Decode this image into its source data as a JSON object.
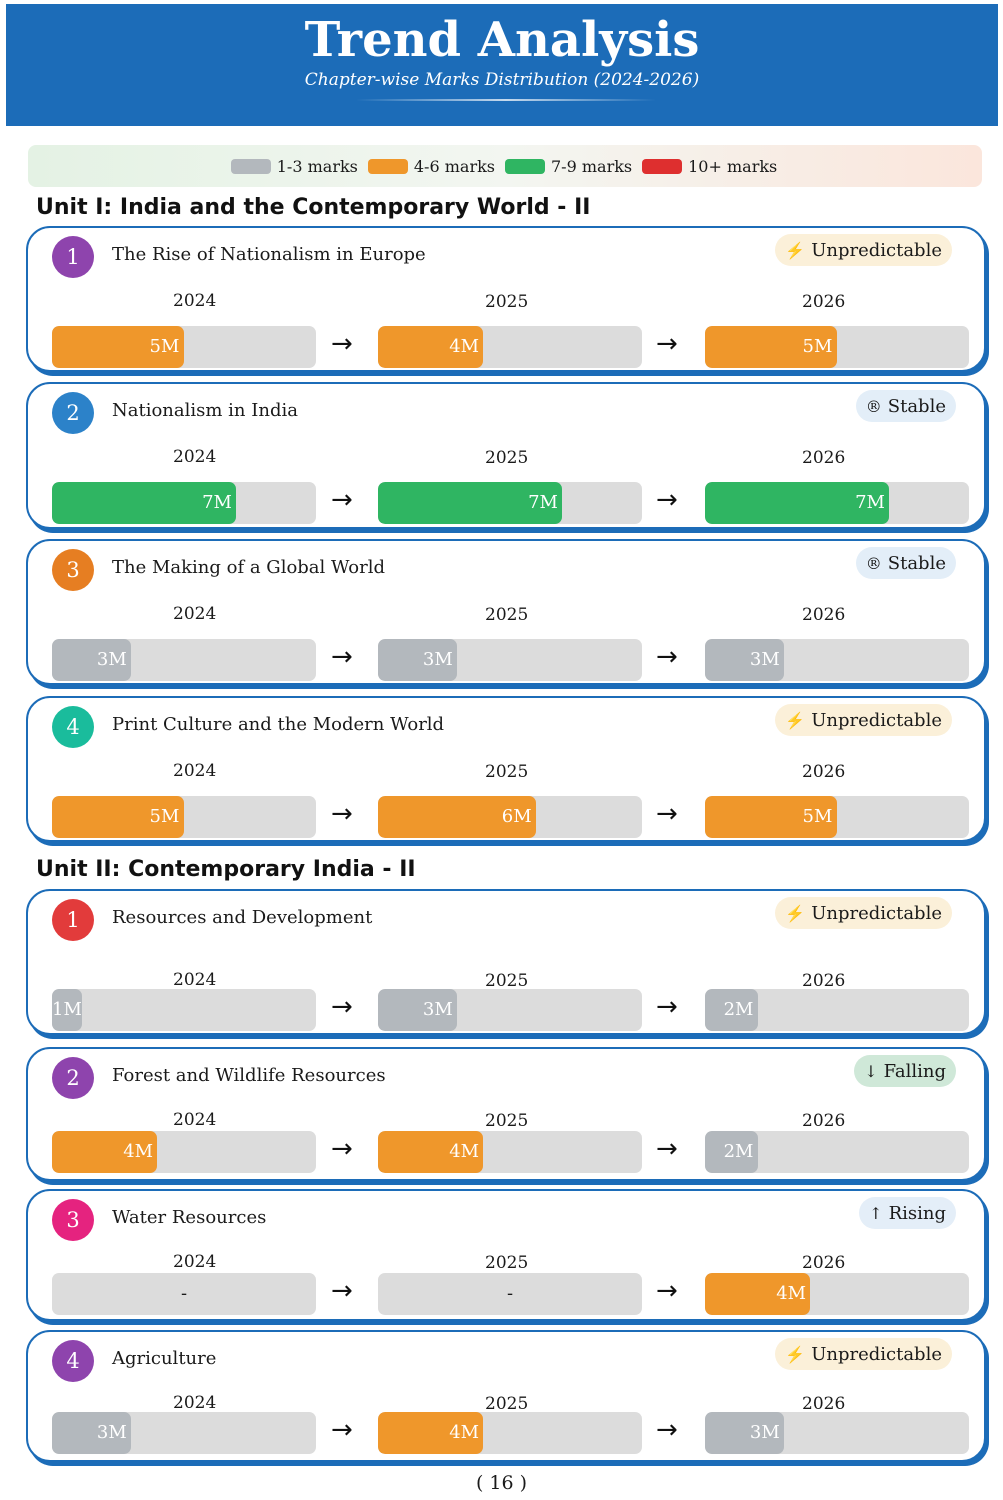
{
  "header": {
    "title": "Trend Analysis",
    "subtitle": "Chapter-wise Marks Distribution (2024-2026)"
  },
  "legend": [
    {
      "label": "1-3 marks",
      "color": "#b3b8bd"
    },
    {
      "label": "4-6 marks",
      "color": "#ef972b"
    },
    {
      "label": "7-9 marks",
      "color": "#2fb562"
    },
    {
      "label": "10+ marks",
      "color": "#de2f2f"
    }
  ],
  "units": [
    {
      "title": "Unit I: India and the Contemporary World - II",
      "chapters": [
        {
          "num": "1",
          "num_color": "#8e44ad",
          "name": "The Rise of Nationalism in Europe",
          "trend": {
            "icon": "lightning-bolt-icon",
            "symbol": "⚡",
            "label": "Unpredictable",
            "style": "unpred"
          },
          "years": [
            {
              "year": "2024",
              "value": 5,
              "text": "5M",
              "color": "#ef972b"
            },
            {
              "year": "2025",
              "value": 4,
              "text": "4M",
              "color": "#ef972b"
            },
            {
              "year": "2026",
              "value": 5,
              "text": "5M",
              "color": "#ef972b"
            }
          ]
        },
        {
          "num": "2",
          "num_color": "#2c82c9",
          "name": "Nationalism in India",
          "trend": {
            "icon": "registered-circle-icon",
            "symbol": "®",
            "label": "Stable",
            "style": "stable"
          },
          "years": [
            {
              "year": "2024",
              "value": 7,
              "text": "7M",
              "color": "#2fb562"
            },
            {
              "year": "2025",
              "value": 7,
              "text": "7M",
              "color": "#2fb562"
            },
            {
              "year": "2026",
              "value": 7,
              "text": "7M",
              "color": "#2fb562"
            }
          ]
        },
        {
          "num": "3",
          "num_color": "#e67e22",
          "name": "The Making of a Global World",
          "trend": {
            "icon": "registered-circle-icon",
            "symbol": "®",
            "label": "Stable",
            "style": "stable"
          },
          "years": [
            {
              "year": "2024",
              "value": 3,
              "text": "3M",
              "color": "#b3b8bd"
            },
            {
              "year": "2025",
              "value": 3,
              "text": "3M",
              "color": "#b3b8bd"
            },
            {
              "year": "2026",
              "value": 3,
              "text": "3M",
              "color": "#b3b8bd"
            }
          ]
        },
        {
          "num": "4",
          "num_color": "#1abc9c",
          "name": "Print Culture and the Modern World",
          "trend": {
            "icon": "lightning-bolt-icon",
            "symbol": "⚡",
            "label": "Unpredictable",
            "style": "unpred"
          },
          "years": [
            {
              "year": "2024",
              "value": 5,
              "text": "5M",
              "color": "#ef972b"
            },
            {
              "year": "2025",
              "value": 6,
              "text": "6M",
              "color": "#ef972b"
            },
            {
              "year": "2026",
              "value": 5,
              "text": "5M",
              "color": "#ef972b"
            }
          ]
        }
      ]
    },
    {
      "title": "Unit II: Contemporary India - II",
      "chapters": [
        {
          "num": "1",
          "num_color": "#e23b3b",
          "name": "Resources and Development",
          "trend": {
            "icon": "lightning-bolt-icon",
            "symbol": "⚡",
            "label": "Unpredictable",
            "style": "unpred"
          },
          "years": [
            {
              "year": "2024",
              "value": 1,
              "text": "1M",
              "color": "#b3b8bd"
            },
            {
              "year": "2025",
              "value": 3,
              "text": "3M",
              "color": "#b3b8bd"
            },
            {
              "year": "2026",
              "value": 2,
              "text": "2M",
              "color": "#b3b8bd"
            }
          ]
        },
        {
          "num": "2",
          "num_color": "#8e44ad",
          "name": "Forest and Wildlife Resources",
          "trend": {
            "icon": "down-arrow-icon",
            "symbol": "↓",
            "label": "Falling",
            "style": "falling"
          },
          "years": [
            {
              "year": "2024",
              "value": 4,
              "text": "4M",
              "color": "#ef972b"
            },
            {
              "year": "2025",
              "value": 4,
              "text": "4M",
              "color": "#ef972b"
            },
            {
              "year": "2026",
              "value": 2,
              "text": "2M",
              "color": "#b3b8bd"
            }
          ]
        },
        {
          "num": "3",
          "num_color": "#e5237f",
          "name": "Water Resources",
          "trend": {
            "icon": "up-arrow-icon",
            "symbol": "↑",
            "label": "Rising",
            "style": "rising"
          },
          "years": [
            {
              "year": "2024",
              "value": 0,
              "text": "-",
              "color": ""
            },
            {
              "year": "2025",
              "value": 0,
              "text": "-",
              "color": ""
            },
            {
              "year": "2026",
              "value": 4,
              "text": "4M",
              "color": "#ef972b"
            }
          ]
        },
        {
          "num": "4",
          "num_color": "#8e44ad",
          "name": "Agriculture",
          "trend": {
            "icon": "lightning-bolt-icon",
            "symbol": "⚡",
            "label": "Unpredictable",
            "style": "unpred"
          },
          "years": [
            {
              "year": "2024",
              "value": 3,
              "text": "3M",
              "color": "#b3b8bd"
            },
            {
              "year": "2025",
              "value": 4,
              "text": "4M",
              "color": "#ef972b"
            },
            {
              "year": "2026",
              "value": 3,
              "text": "3M",
              "color": "#b3b8bd"
            }
          ]
        }
      ]
    }
  ],
  "page_number": "( 16 )"
}
